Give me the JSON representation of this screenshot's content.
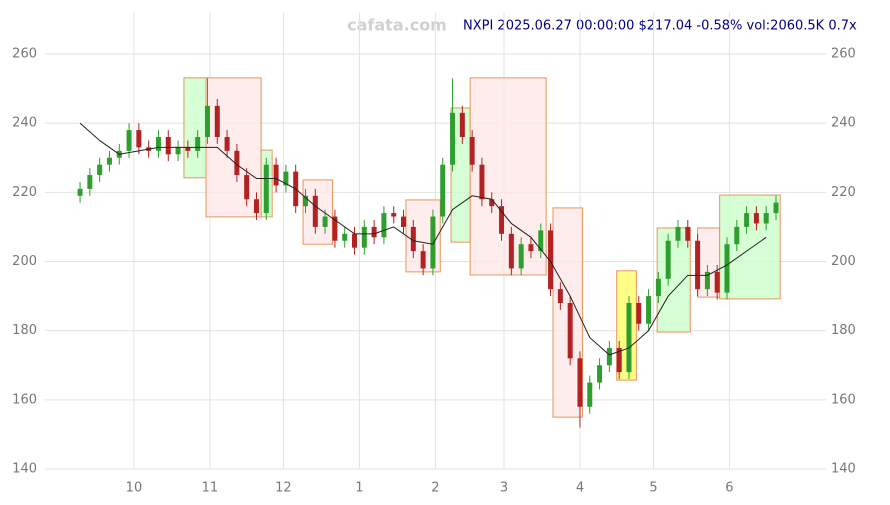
{
  "chart_data": {
    "type": "candlestick",
    "title": "NXPI 2025.06.27 00:00:00 $217.04 -0.58% vol:2060.5K 0.7x",
    "watermark": "cafata.com",
    "xlim": [
      -6.3,
      312.4
    ],
    "ylim": [
      140,
      272
    ],
    "yticks": [
      140,
      160,
      180,
      200,
      220,
      240,
      260
    ],
    "xticks": [
      {
        "value": 30,
        "label": "10"
      },
      {
        "value": 61,
        "label": "11"
      },
      {
        "value": 91,
        "label": "12"
      },
      {
        "value": 122,
        "label": "1"
      },
      {
        "value": 153,
        "label": "2"
      },
      {
        "value": 181,
        "label": "3"
      },
      {
        "value": 212,
        "label": "4"
      },
      {
        "value": 242,
        "label": "5"
      },
      {
        "value": 273,
        "label": "6"
      }
    ],
    "grid": true,
    "up_color": "#2e9e2e",
    "down_color": "#b22222",
    "x": [
      8,
      12,
      16,
      20,
      24,
      28,
      32,
      36,
      40,
      44,
      48,
      52,
      56,
      60,
      64,
      68,
      72,
      76,
      80,
      84,
      88,
      92,
      96,
      100,
      104,
      108,
      112,
      116,
      120,
      124,
      128,
      132,
      136,
      140,
      144,
      148,
      152,
      156,
      160,
      164,
      168,
      172,
      176,
      180,
      184,
      188,
      192,
      196,
      200,
      204,
      208,
      212,
      216,
      220,
      224,
      228,
      232,
      236,
      240,
      244,
      248,
      252,
      256,
      260,
      264,
      268,
      272,
      276,
      280,
      284,
      288,
      292
    ],
    "open": [
      219,
      221,
      225,
      228,
      230,
      232,
      238,
      233,
      232,
      236,
      231,
      233,
      232,
      236,
      245,
      236,
      232,
      225,
      218,
      214,
      228,
      222,
      226,
      216,
      219,
      210,
      213,
      206,
      208,
      204,
      210,
      207,
      214,
      213,
      210,
      203,
      198,
      213,
      228,
      243,
      236,
      228,
      218,
      216,
      208,
      198,
      205,
      203,
      209,
      192,
      188,
      172,
      158,
      165,
      170,
      175,
      168,
      188,
      182,
      190,
      195,
      206,
      210,
      206,
      192,
      197,
      191,
      205,
      210,
      214,
      211,
      214
    ],
    "high": [
      223,
      227,
      230,
      232,
      234,
      240,
      240,
      235,
      238,
      238,
      235,
      235,
      238,
      253,
      247,
      238,
      234,
      227,
      220,
      230,
      230,
      228,
      228,
      221,
      221,
      215,
      215,
      210,
      210,
      212,
      212,
      216,
      216,
      215,
      212,
      205,
      215,
      230,
      253,
      245,
      238,
      230,
      220,
      218,
      210,
      207,
      207,
      211,
      211,
      194,
      190,
      174,
      167,
      172,
      177,
      177,
      190,
      190,
      192,
      197,
      208,
      212,
      212,
      208,
      199,
      199,
      207,
      212,
      216,
      216,
      216,
      219
    ],
    "low": [
      217,
      219,
      223,
      226,
      228,
      230,
      231,
      230,
      230,
      229,
      229,
      230,
      230,
      234,
      234,
      230,
      223,
      216,
      212,
      212,
      220,
      220,
      214,
      214,
      208,
      208,
      204,
      204,
      202,
      202,
      205,
      205,
      211,
      208,
      201,
      196,
      196,
      211,
      226,
      234,
      226,
      216,
      214,
      206,
      196,
      196,
      201,
      201,
      190,
      186,
      170,
      152,
      156,
      163,
      168,
      166,
      166,
      180,
      180,
      188,
      193,
      204,
      204,
      190,
      190,
      189,
      189,
      203,
      208,
      209,
      209,
      212
    ],
    "close": [
      221,
      225,
      228,
      230,
      232,
      238,
      233,
      232,
      236,
      231,
      233,
      232,
      236,
      245,
      236,
      232,
      225,
      218,
      214,
      228,
      222,
      226,
      216,
      219,
      210,
      213,
      206,
      208,
      204,
      210,
      207,
      214,
      213,
      210,
      203,
      198,
      213,
      228,
      243,
      236,
      228,
      218,
      216,
      208,
      198,
      205,
      203,
      209,
      192,
      188,
      172,
      158,
      165,
      170,
      175,
      168,
      188,
      182,
      190,
      195,
      206,
      210,
      206,
      192,
      197,
      191,
      205,
      210,
      214,
      211,
      214,
      217.04
    ],
    "ma": {
      "color": "#222222",
      "x": [
        8,
        16,
        24,
        32,
        40,
        48,
        56,
        64,
        72,
        80,
        88,
        96,
        104,
        112,
        120,
        128,
        136,
        144,
        152,
        160,
        168,
        176,
        184,
        192,
        200,
        208,
        216,
        224,
        232,
        240,
        248,
        256,
        264,
        272,
        280,
        288
      ],
      "values": [
        240,
        235,
        231,
        232,
        233,
        233,
        233,
        233,
        228,
        224,
        224,
        221,
        216,
        212,
        208,
        208,
        210,
        206,
        205,
        215,
        219,
        218,
        211,
        207,
        200,
        190,
        178,
        173,
        175,
        180,
        190,
        196,
        196,
        199,
        203,
        207
      ]
    },
    "zones": [
      {
        "x": [
          50.4,
          59.4
        ],
        "y": [
          224.2,
          253.1
        ],
        "color": "#ccffcc"
      },
      {
        "x": [
          59.4,
          81.9
        ],
        "y": [
          212.9,
          253.1
        ],
        "color": "#ffe8e8"
      },
      {
        "x": [
          81.9,
          86.4
        ],
        "y": [
          212.9,
          232.2
        ],
        "color": "#ccffcc"
      },
      {
        "x": [
          99,
          111
        ],
        "y": [
          205,
          223.6
        ],
        "color": "#ffe8e8"
      },
      {
        "x": [
          141,
          155
        ],
        "y": [
          197,
          217.8
        ],
        "color": "#ffe8e8"
      },
      {
        "x": [
          159.4,
          167.2
        ],
        "y": [
          205.6,
          244.4
        ],
        "color": "#ccffcc"
      },
      {
        "x": [
          167.2,
          198.2
        ],
        "y": [
          196.1,
          253.1
        ],
        "color": "#ffe8e8"
      },
      {
        "x": [
          201,
          213
        ],
        "y": [
          155,
          215.5
        ],
        "color": "#ffe8e8"
      },
      {
        "x": [
          227,
          235
        ],
        "y": [
          165.7,
          197.3
        ],
        "color": "#ffff66"
      },
      {
        "x": [
          243.5,
          257
        ],
        "y": [
          179.6,
          209.7
        ],
        "color": "#ccffcc"
      },
      {
        "x": [
          260,
          269
        ],
        "y": [
          189.7,
          209.7
        ],
        "color": "#ffe8e8"
      },
      {
        "x": [
          269,
          293.7
        ],
        "y": [
          189.2,
          219.2
        ],
        "color": "#ccffcc"
      }
    ]
  }
}
